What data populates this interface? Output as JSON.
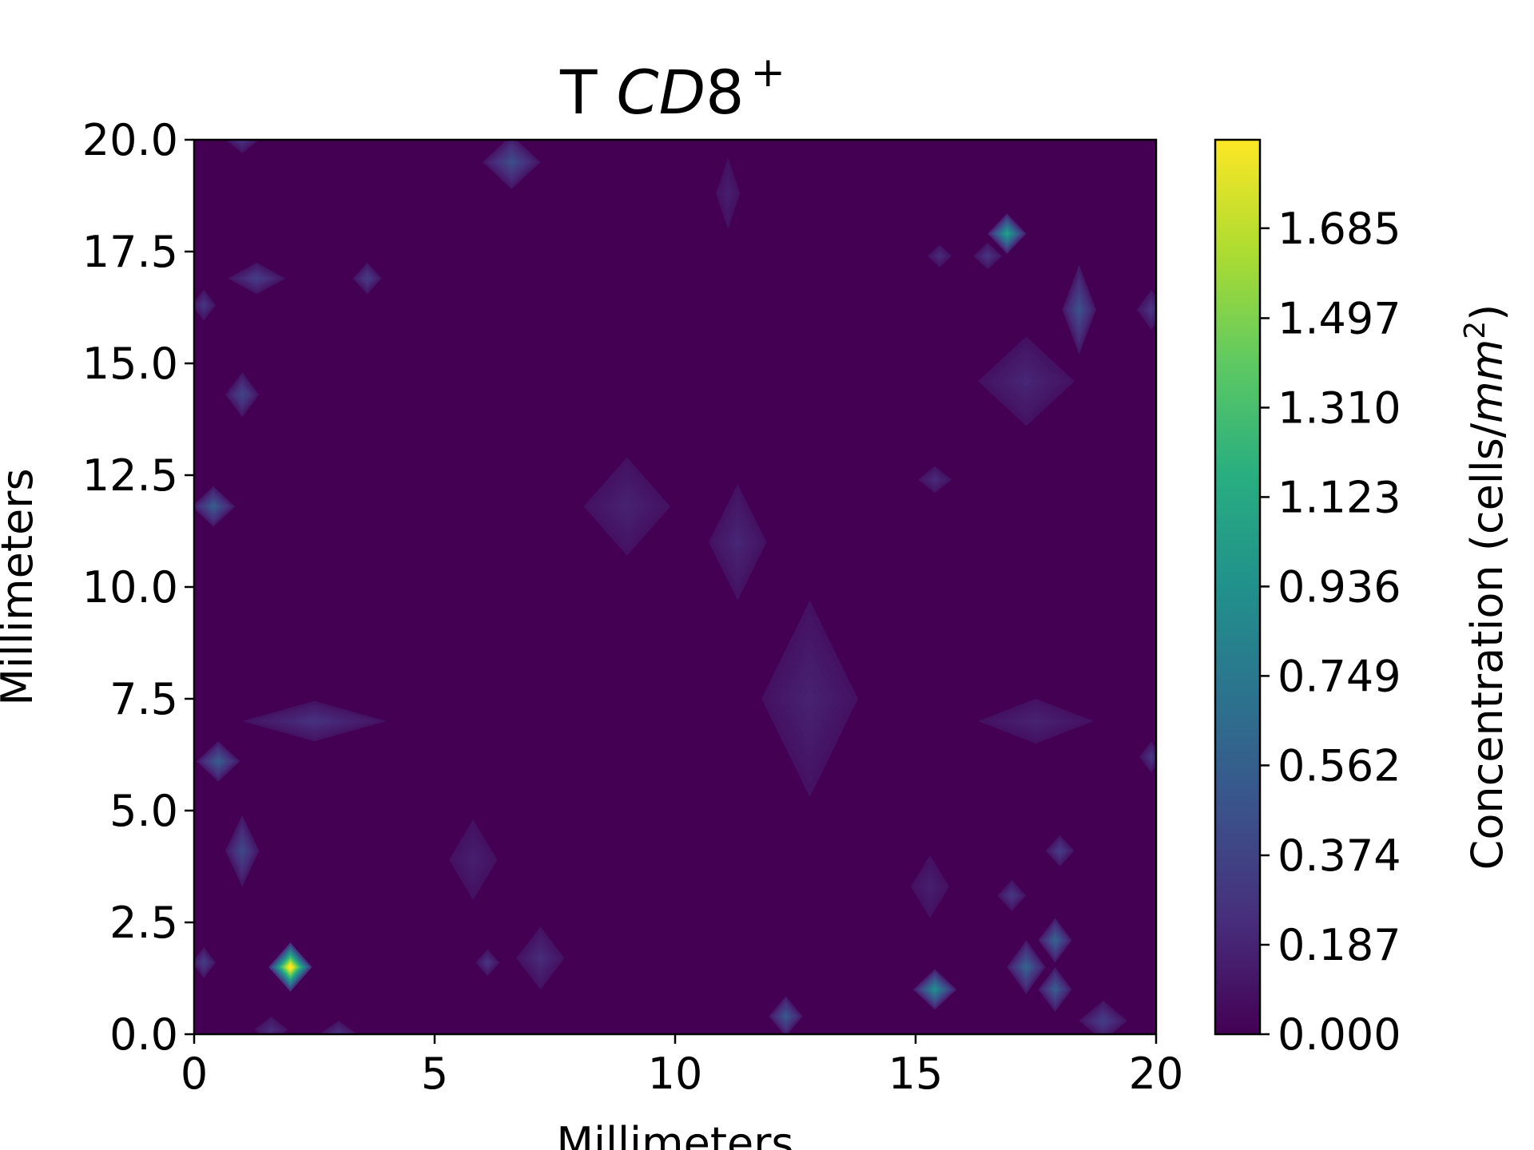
{
  "chart_data": {
    "type": "heatmap",
    "subtype": "filled-contour",
    "title": {
      "prefix": "T ",
      "name": "CD",
      "digit": "8",
      "superscript": "+"
    },
    "xlabel": "Millimeters",
    "ylabel": "Millimeters",
    "xlim": [
      0,
      20
    ],
    "ylim": [
      0,
      20
    ],
    "x_ticks": [
      0,
      5,
      10,
      15,
      20
    ],
    "x_tick_labels": [
      "0",
      "5",
      "10",
      "15",
      "20"
    ],
    "y_ticks": [
      0,
      2.5,
      5,
      7.5,
      10,
      12.5,
      15,
      17.5,
      20
    ],
    "y_tick_labels": [
      "0.0",
      "2.5",
      "5.0",
      "7.5",
      "10.0",
      "12.5",
      "15.0",
      "17.5",
      "20.0"
    ],
    "colorbar": {
      "label_prefix": "Concentration (cells/",
      "label_unit": "mm",
      "label_exp": "2",
      "label_suffix": ")",
      "colormap": "viridis",
      "min": 0,
      "max": 1.87,
      "ticks": [
        0,
        0.187,
        0.374,
        0.562,
        0.749,
        0.936,
        1.123,
        1.31,
        1.497,
        1.685
      ],
      "tick_labels": [
        "0.000",
        "0.187",
        "0.374",
        "0.562",
        "0.749",
        "0.936",
        "1.123",
        "1.310",
        "1.497",
        "1.685"
      ]
    },
    "grid": false,
    "background_value": 0.0,
    "hotspots": [
      {
        "x": 2.0,
        "y": 1.5,
        "value": 1.87,
        "rx": 0.45,
        "ry": 0.55
      },
      {
        "x": 16.9,
        "y": 17.9,
        "value": 0.95,
        "rx": 0.4,
        "ry": 0.45
      },
      {
        "x": 15.4,
        "y": 1.0,
        "value": 0.8,
        "rx": 0.45,
        "ry": 0.45
      },
      {
        "x": 17.3,
        "y": 1.5,
        "value": 0.5,
        "rx": 0.4,
        "ry": 0.6
      },
      {
        "x": 17.9,
        "y": 2.1,
        "value": 0.5,
        "rx": 0.35,
        "ry": 0.5
      },
      {
        "x": 17.9,
        "y": 1.0,
        "value": 0.45,
        "rx": 0.35,
        "ry": 0.5
      },
      {
        "x": 0.4,
        "y": 11.8,
        "value": 0.45,
        "rx": 0.45,
        "ry": 0.45
      },
      {
        "x": 0.5,
        "y": 6.1,
        "value": 0.45,
        "rx": 0.45,
        "ry": 0.45
      },
      {
        "x": 18.4,
        "y": 16.2,
        "value": 0.38,
        "rx": 0.35,
        "ry": 1.0
      },
      {
        "x": 12.3,
        "y": 0.4,
        "value": 0.42,
        "rx": 0.35,
        "ry": 0.45
      },
      {
        "x": 6.6,
        "y": 19.5,
        "value": 0.35,
        "rx": 0.6,
        "ry": 0.6
      },
      {
        "x": 1.0,
        "y": 14.3,
        "value": 0.3,
        "rx": 0.35,
        "ry": 0.5
      },
      {
        "x": 1.0,
        "y": 4.1,
        "value": 0.32,
        "rx": 0.35,
        "ry": 0.8
      },
      {
        "x": 1.3,
        "y": 16.9,
        "value": 0.25,
        "rx": 0.6,
        "ry": 0.35
      },
      {
        "x": 3.6,
        "y": 16.9,
        "value": 0.25,
        "rx": 0.3,
        "ry": 0.35
      },
      {
        "x": 2.5,
        "y": 7.0,
        "value": 0.18,
        "rx": 1.5,
        "ry": 0.45
      },
      {
        "x": 18.0,
        "y": 4.1,
        "value": 0.25,
        "rx": 0.3,
        "ry": 0.35
      },
      {
        "x": 17.0,
        "y": 3.1,
        "value": 0.22,
        "rx": 0.3,
        "ry": 0.35
      },
      {
        "x": 18.9,
        "y": 0.3,
        "value": 0.25,
        "rx": 0.5,
        "ry": 0.45
      },
      {
        "x": 19.9,
        "y": 16.2,
        "value": 0.2,
        "rx": 0.3,
        "ry": 0.45
      },
      {
        "x": 16.5,
        "y": 17.4,
        "value": 0.2,
        "rx": 0.3,
        "ry": 0.3
      },
      {
        "x": 7.2,
        "y": 1.7,
        "value": 0.15,
        "rx": 0.5,
        "ry": 0.7
      },
      {
        "x": 11.3,
        "y": 11.0,
        "value": 0.12,
        "rx": 0.6,
        "ry": 1.3
      },
      {
        "x": 9.0,
        "y": 11.8,
        "value": 0.1,
        "rx": 0.9,
        "ry": 1.1
      },
      {
        "x": 12.8,
        "y": 7.5,
        "value": 0.1,
        "rx": 1.0,
        "ry": 2.2
      },
      {
        "x": 17.3,
        "y": 14.6,
        "value": 0.12,
        "rx": 1.0,
        "ry": 1.0
      },
      {
        "x": 17.5,
        "y": 7.0,
        "value": 0.1,
        "rx": 1.2,
        "ry": 0.5
      },
      {
        "x": 0.2,
        "y": 1.6,
        "value": 0.25,
        "rx": 0.25,
        "ry": 0.35
      },
      {
        "x": 0.2,
        "y": 16.3,
        "value": 0.2,
        "rx": 0.25,
        "ry": 0.35
      },
      {
        "x": 6.1,
        "y": 1.6,
        "value": 0.2,
        "rx": 0.25,
        "ry": 0.3
      },
      {
        "x": 15.4,
        "y": 12.4,
        "value": 0.15,
        "rx": 0.35,
        "ry": 0.3
      },
      {
        "x": 15.5,
        "y": 17.4,
        "value": 0.15,
        "rx": 0.25,
        "ry": 0.25
      },
      {
        "x": 19.9,
        "y": 6.2,
        "value": 0.2,
        "rx": 0.25,
        "ry": 0.35
      },
      {
        "x": 5.8,
        "y": 3.9,
        "value": 0.08,
        "rx": 0.5,
        "ry": 0.9
      },
      {
        "x": 15.3,
        "y": 3.3,
        "value": 0.08,
        "rx": 0.4,
        "ry": 0.7
      },
      {
        "x": 11.1,
        "y": 18.8,
        "value": 0.08,
        "rx": 0.25,
        "ry": 0.8
      },
      {
        "x": 1.0,
        "y": 20.0,
        "value": 0.2,
        "rx": 0.35,
        "ry": 0.3
      },
      {
        "x": 3.0,
        "y": 0.0,
        "value": 0.2,
        "rx": 0.4,
        "ry": 0.3
      },
      {
        "x": 1.6,
        "y": 0.1,
        "value": 0.15,
        "rx": 0.35,
        "ry": 0.3
      }
    ]
  }
}
